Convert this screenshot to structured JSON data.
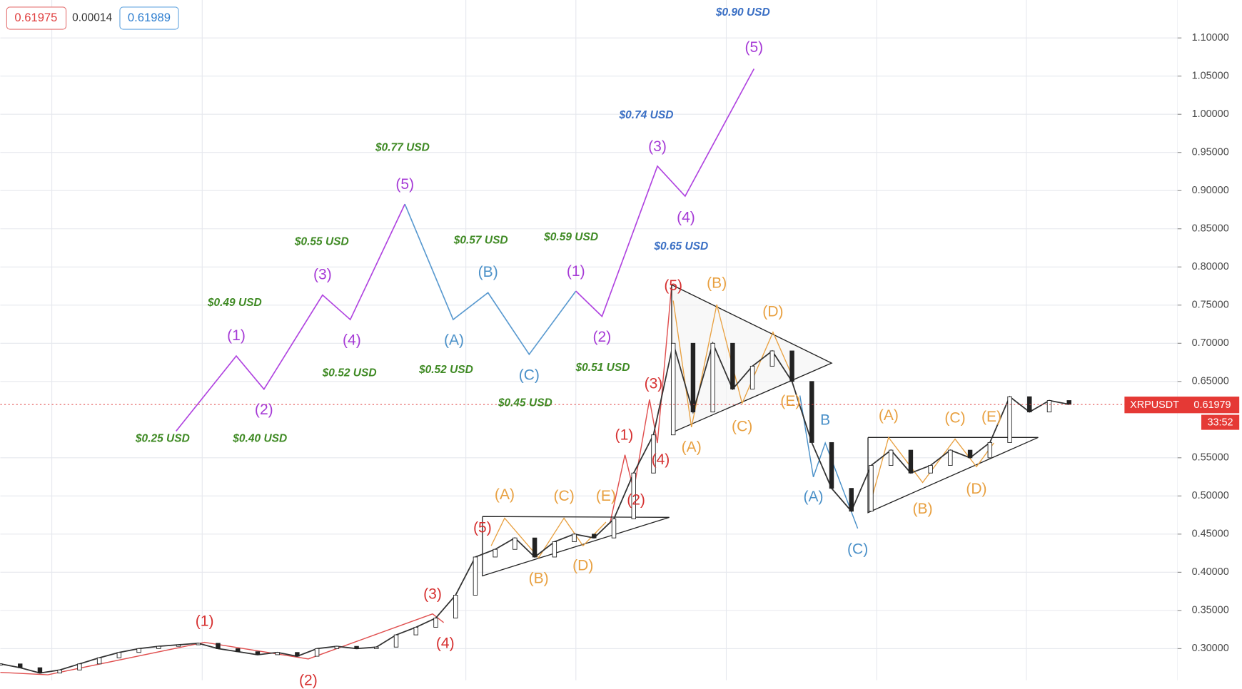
{
  "header": {
    "bid": "0.61975",
    "spread": "0.00014",
    "ask": "0.61989"
  },
  "chart_data": {
    "type": "line",
    "color": "#333333",
    "values": [
      0.28,
      0.275,
      0.268,
      0.272,
      0.28,
      0.288,
      0.295,
      0.3,
      0.303,
      0.305,
      0.307,
      0.3,
      0.296,
      0.292,
      0.295,
      0.29,
      0.3,
      0.303,
      0.3,
      0.302,
      0.318,
      0.328,
      0.34,
      0.37,
      0.42,
      0.43,
      0.445,
      0.42,
      0.44,
      0.45,
      0.445,
      0.47,
      0.53,
      0.58,
      0.7,
      0.61,
      0.7,
      0.64,
      0.67,
      0.69,
      0.65,
      0.57,
      0.51,
      0.48,
      0.54,
      0.56,
      0.53,
      0.54,
      0.56,
      0.55,
      0.57,
      0.63,
      0.61,
      0.625,
      0.62
    ],
    "ylim": [
      0.2585,
      1.1497
    ],
    "yticks": [
      {
        "value": 0.3,
        "label": "0.30000"
      },
      {
        "value": 0.35,
        "label": "0.35000"
      },
      {
        "value": 0.4,
        "label": "0.40000"
      },
      {
        "value": 0.45,
        "label": "0.45000"
      },
      {
        "value": 0.5,
        "label": "0.50000"
      },
      {
        "value": 0.55,
        "label": "0.55000"
      },
      {
        "value": 0.65,
        "label": "0.65000"
      },
      {
        "value": 0.7,
        "label": "0.70000"
      },
      {
        "value": 0.75,
        "label": "0.75000"
      },
      {
        "value": 0.8,
        "label": "0.80000"
      },
      {
        "value": 0.85,
        "label": "0.85000"
      },
      {
        "value": 0.9,
        "label": "0.90000"
      },
      {
        "value": 0.95,
        "label": "0.95000"
      },
      {
        "value": 1.0,
        "label": "1.00000"
      },
      {
        "value": 1.05,
        "label": "1.05000"
      },
      {
        "value": 1.1,
        "label": "1.10000"
      }
    ],
    "grid": true,
    "symbol": "XRPUSDT",
    "last_price": {
      "value": 0.61979,
      "label": "0.61979"
    },
    "countdown": "33:52",
    "annotations": [
      "$0.25 USD",
      "$0.40 USD",
      "$0.49 USD",
      "$0.55 USD",
      "$0.52 USD",
      "$0.77 USD",
      "$0.52 USD",
      "$0.57 USD",
      "$0.45 USD",
      "$0.59 USD",
      "$0.51 USD",
      "$0.90 USD",
      "$0.74 USD",
      "$0.65 USD"
    ],
    "wave_labels": [
      "(1)",
      "(2)",
      "(3)",
      "(4)",
      "(5)",
      "(1)",
      "(2)",
      "(3)",
      "(4)",
      "(5)",
      "(A)",
      "(B)",
      "(C)",
      "B",
      "(A)",
      "(C)",
      "(1)",
      "(2)",
      "(3)",
      "(4)",
      "(5)",
      "(1)",
      "(2)",
      "(3)",
      "(4)",
      "(5)",
      "(A)",
      "(B)",
      "(C)",
      "(D)",
      "(E)",
      "(A)",
      "(B)",
      "(C)",
      "(D)",
      "(E)",
      "(A)",
      "(B)",
      "(C)",
      "(D)",
      "(E)"
    ]
  }
}
